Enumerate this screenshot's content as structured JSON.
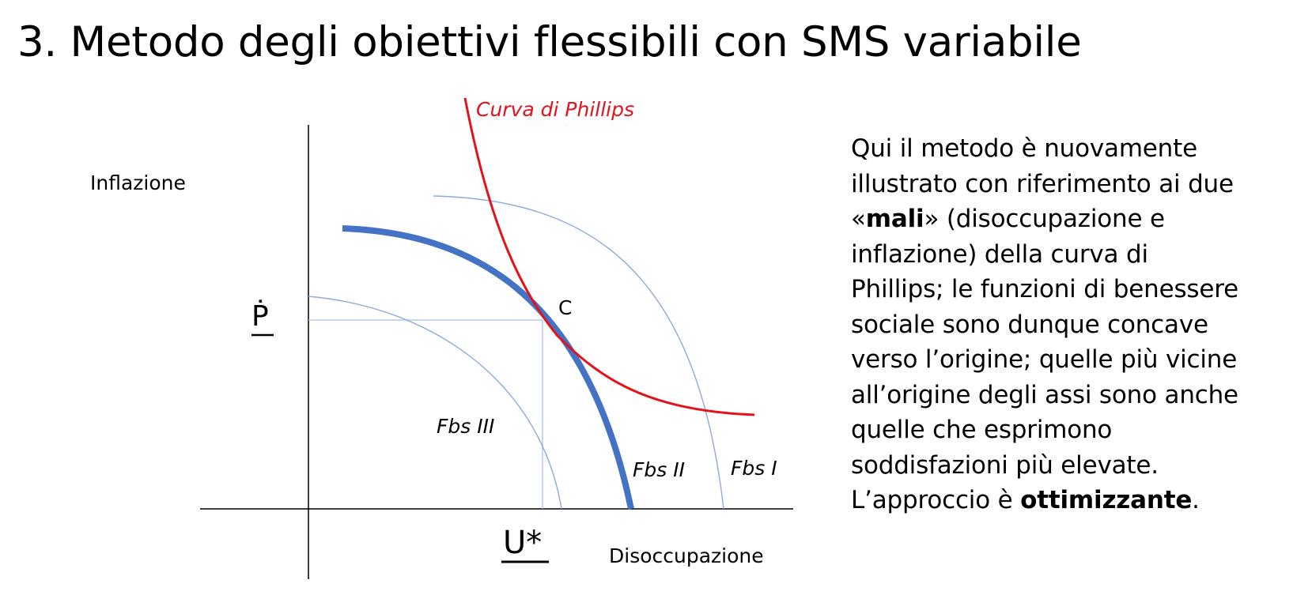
{
  "title": "3. Metodo degli obiettivi flessibili con SMS variabile",
  "diagram": {
    "y_axis_label": "Inflazione",
    "x_axis_label": "Disoccupazione",
    "y_target_label": "Ṗ",
    "x_target_label": "U*",
    "point_label": "C",
    "phillips_label": "Curva di Phillips",
    "welfare_curves": [
      {
        "label": "Fbs I"
      },
      {
        "label": "Fbs II"
      },
      {
        "label": "Fbs III"
      }
    ],
    "colors": {
      "phillips": "#e3131b",
      "optimal_welfare": "#4472c4",
      "welfare": "#8eaadb",
      "guide": "#a9bfe3",
      "axis": "#000000"
    }
  },
  "description": {
    "line1": "Qui il metodo è nuovamente",
    "line2": "illustrato con riferimento ai due",
    "line3_open": "«",
    "line3_bold": "mali",
    "line3_rest": "» (disoccupazione e",
    "line4": "inflazione) della curva di",
    "line5": "Phillips; le funzioni di benessere",
    "line6": "sociale sono dunque concave",
    "line7": "verso l’origine; quelle più vicine",
    "line8": "all’origine degli assi sono anche",
    "line9": "quelle che esprimono",
    "line10": "soddisfazioni più elevate.",
    "line11_pre": "L’approccio è ",
    "line11_bold": "ottimizzante",
    "line11_end": "."
  }
}
